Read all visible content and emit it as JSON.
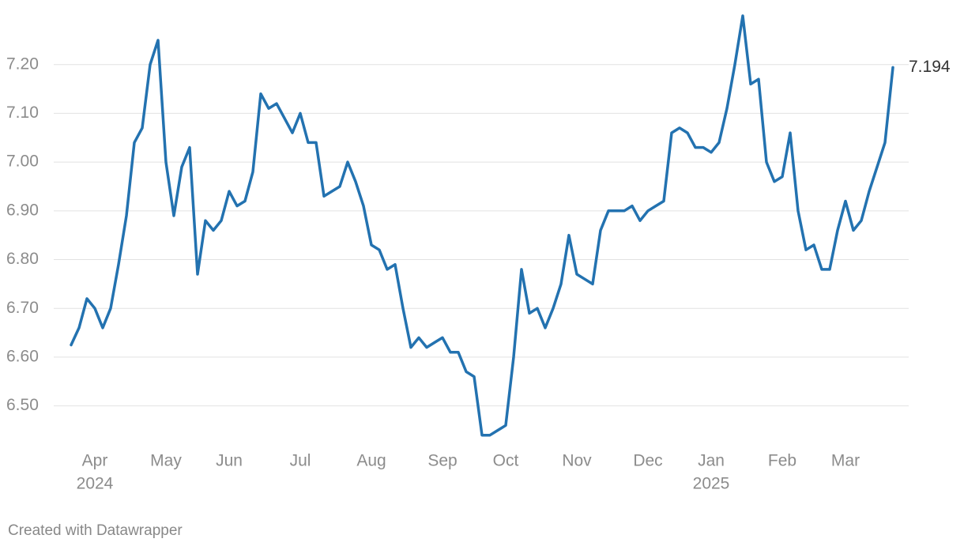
{
  "chart_data": {
    "type": "line",
    "categories": [
      null,
      null,
      null,
      "Apr",
      null,
      null,
      null,
      null,
      null,
      null,
      null,
      null,
      "May",
      null,
      null,
      null,
      null,
      null,
      null,
      null,
      "Jun",
      null,
      null,
      null,
      null,
      null,
      null,
      null,
      null,
      "Jul",
      null,
      null,
      null,
      null,
      null,
      null,
      null,
      null,
      "Aug",
      null,
      null,
      null,
      null,
      null,
      null,
      null,
      null,
      "Sep",
      null,
      null,
      null,
      null,
      null,
      null,
      null,
      "Oct",
      null,
      null,
      null,
      null,
      null,
      null,
      null,
      null,
      "Nov",
      null,
      null,
      null,
      null,
      null,
      null,
      null,
      null,
      "Dec",
      null,
      null,
      null,
      null,
      null,
      null,
      null,
      "Jan",
      null,
      null,
      null,
      null,
      null,
      null,
      null,
      null,
      "Feb",
      null,
      null,
      null,
      null,
      null,
      null,
      null,
      "Mar",
      null,
      null,
      null,
      null,
      null,
      null
    ],
    "category_years": [
      null,
      null,
      null,
      "2024",
      null,
      null,
      null,
      null,
      null,
      null,
      null,
      null,
      null,
      null,
      null,
      null,
      null,
      null,
      null,
      null,
      null,
      null,
      null,
      null,
      null,
      null,
      null,
      null,
      null,
      null,
      null,
      null,
      null,
      null,
      null,
      null,
      null,
      null,
      null,
      null,
      null,
      null,
      null,
      null,
      null,
      null,
      null,
      null,
      null,
      null,
      null,
      null,
      null,
      null,
      null,
      null,
      null,
      null,
      null,
      null,
      null,
      null,
      null,
      null,
      null,
      null,
      null,
      null,
      null,
      null,
      null,
      null,
      null,
      null,
      null,
      null,
      null,
      null,
      null,
      null,
      null,
      "2025",
      null,
      null,
      null,
      null,
      null,
      null,
      null,
      null,
      null,
      null,
      null,
      null,
      null,
      null,
      null,
      null,
      null,
      null,
      null,
      null,
      null,
      null,
      null
    ],
    "values": [
      6.625,
      6.66,
      6.72,
      6.7,
      6.66,
      6.7,
      6.79,
      6.89,
      7.04,
      7.07,
      7.2,
      7.25,
      7.0,
      6.89,
      6.99,
      7.03,
      6.77,
      6.88,
      6.86,
      6.88,
      6.94,
      6.91,
      6.92,
      6.98,
      7.14,
      7.11,
      7.12,
      7.09,
      7.06,
      7.1,
      7.04,
      7.04,
      6.93,
      6.94,
      6.95,
      7.0,
      6.96,
      6.91,
      6.83,
      6.82,
      6.78,
      6.79,
      6.7,
      6.62,
      6.64,
      6.62,
      6.63,
      6.64,
      6.61,
      6.61,
      6.57,
      6.56,
      6.44,
      6.44,
      6.45,
      6.46,
      6.6,
      6.78,
      6.69,
      6.7,
      6.66,
      6.7,
      6.75,
      6.85,
      6.77,
      6.76,
      6.75,
      6.86,
      6.9,
      6.9,
      6.9,
      6.91,
      6.88,
      6.9,
      6.91,
      6.92,
      7.06,
      7.07,
      7.06,
      7.03,
      7.03,
      7.02,
      7.04,
      7.11,
      7.2,
      7.3,
      7.16,
      7.17,
      7.0,
      6.96,
      6.97,
      7.06,
      6.9,
      6.82,
      6.83,
      6.78,
      6.78,
      6.86,
      6.92,
      6.86,
      6.88,
      6.94,
      6.99,
      7.04,
      7.194
    ],
    "color": "#2372b0",
    "ylim": [
      6.42,
      7.3
    ],
    "yticks": [
      {
        "value": 6.5,
        "label": "6.50"
      },
      {
        "value": 6.6,
        "label": "6.60"
      },
      {
        "value": 6.7,
        "label": "6.70"
      },
      {
        "value": 6.8,
        "label": "6.80"
      },
      {
        "value": 6.9,
        "label": "6.90"
      },
      {
        "value": 7.0,
        "label": "7.00"
      },
      {
        "value": 7.1,
        "label": "7.10"
      },
      {
        "value": 7.2,
        "label": "7.20"
      }
    ],
    "grid": true,
    "credit": "Created with Datawrapper"
  }
}
